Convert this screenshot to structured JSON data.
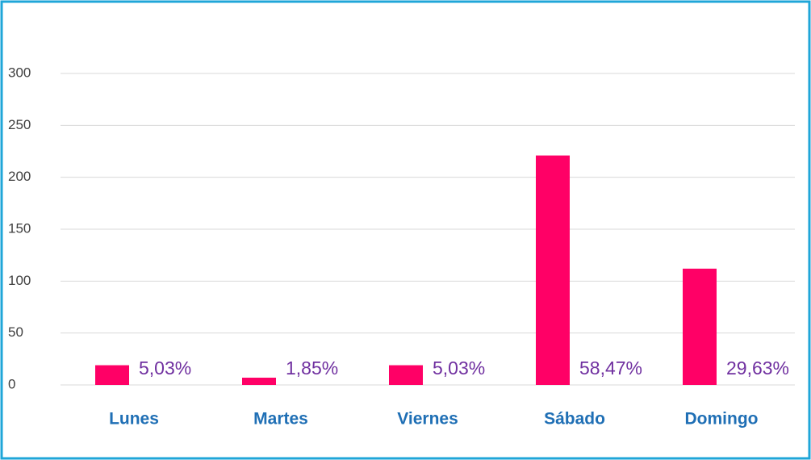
{
  "chart_data": {
    "type": "bar",
    "categories": [
      "Lunes",
      "Martes",
      "Viernes",
      "Sábado",
      "Domingo"
    ],
    "values": [
      19,
      7,
      19,
      221,
      112
    ],
    "percentages": [
      5.03,
      1.85,
      5.03,
      58.47,
      29.63
    ],
    "percentage_labels": [
      "5,03%",
      "1,85%",
      "5,03%",
      "58,47%",
      "29,63%"
    ],
    "color": "#ff0066",
    "ylim": [
      0,
      300
    ],
    "yticks": [
      0,
      50,
      100,
      150,
      200,
      250,
      300
    ],
    "grid": true
  }
}
